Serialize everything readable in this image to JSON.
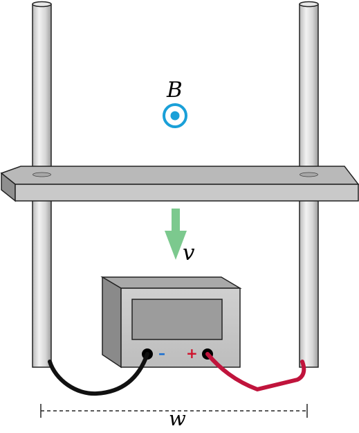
{
  "labels": {
    "magnetic_field": "B",
    "velocity": "v",
    "width": "w"
  },
  "meter": {
    "minus_sign": "–",
    "plus_sign": "+"
  },
  "colors": {
    "field_symbol": "#1aa0d8",
    "velocity_arrow": "#7cc98e",
    "negative_lead": "#111111",
    "positive_lead": "#c0143c",
    "minus_terminal_sign": "#1a6fd0",
    "plus_terminal_sign": "#d0102a"
  },
  "icons": {
    "field_direction": "dot-in-circle-out-of-page-icon",
    "velocity_direction": "down-arrow-icon"
  }
}
